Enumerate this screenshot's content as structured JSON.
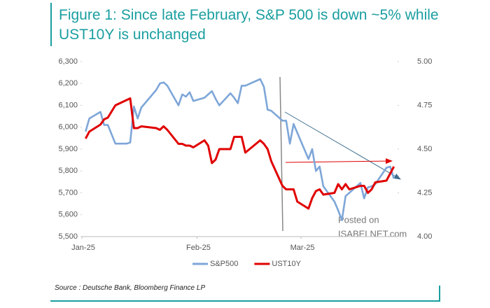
{
  "chart_data": {
    "type": "line",
    "title": "Figure 1: Since late February, S&P 500 is down ~5% while UST10Y is unchanged",
    "source": "Source : Deutsche Bank, Bloomberg Finance LP",
    "watermark": [
      "Posted on",
      "ISABELNET.com"
    ],
    "x": [
      1,
      2,
      5,
      6,
      7,
      9,
      12,
      13,
      14,
      15,
      16,
      20,
      21,
      22,
      23,
      26,
      27,
      28,
      29,
      30,
      33,
      34,
      35,
      36,
      37,
      40,
      41,
      42,
      43,
      44,
      48,
      49,
      50,
      51,
      54,
      55,
      56,
      57,
      58,
      61,
      62,
      63,
      64,
      65,
      68,
      69,
      70,
      71,
      72,
      75,
      76,
      77,
      78,
      79,
      82,
      83,
      84
    ],
    "xlim": [
      0,
      85
    ],
    "xticks": [
      {
        "value": 0,
        "label": "Jan-25"
      },
      {
        "value": 31,
        "label": "Feb-25"
      },
      {
        "value": 59,
        "label": "Mar-25"
      }
    ],
    "series": [
      {
        "name": "S&P500",
        "color": "#7ea6d8",
        "values": [
          5980,
          6040,
          6070,
          6010,
          6010,
          5925,
          5925,
          5930,
          6095,
          6040,
          6090,
          6170,
          6200,
          6205,
          6190,
          6100,
          6150,
          6140,
          6160,
          6120,
          6135,
          6150,
          6165,
          6130,
          6100,
          6155,
          6135,
          6110,
          6190,
          6190,
          6220,
          6185,
          6080,
          6075,
          6030,
          6030,
          5925,
          6015,
          5975,
          5855,
          5900,
          5800,
          5820,
          5730,
          5660,
          5620,
          5575,
          5685,
          5700,
          5745,
          5675,
          5725,
          5730,
          5740,
          5815,
          5820,
          5765
        ]
      },
      {
        "name": "UST10Y",
        "color": "#e00000",
        "axis": "y2",
        "values": [
          4.56,
          4.6,
          4.64,
          4.67,
          4.68,
          4.75,
          4.78,
          4.79,
          4.62,
          4.62,
          4.63,
          4.62,
          4.61,
          4.63,
          4.61,
          4.53,
          4.53,
          4.52,
          4.52,
          4.51,
          4.55,
          4.52,
          4.42,
          4.44,
          4.5,
          4.5,
          4.57,
          4.57,
          4.57,
          4.48,
          4.55,
          4.53,
          4.5,
          4.43,
          4.29,
          4.27,
          4.27,
          4.27,
          4.2,
          4.16,
          4.22,
          4.26,
          4.27,
          4.24,
          4.25,
          4.3,
          4.27,
          4.3,
          4.27,
          4.29,
          4.29,
          4.25,
          4.27,
          4.31,
          4.32,
          4.36,
          4.4
        ]
      }
    ],
    "ylim": [
      5500,
      6300
    ],
    "yticks": [
      {
        "value": 5500,
        "label": "5,500"
      },
      {
        "value": 5600,
        "label": "5,600"
      },
      {
        "value": 5700,
        "label": "5,700"
      },
      {
        "value": 5800,
        "label": "5,800"
      },
      {
        "value": 5900,
        "label": "5,900"
      },
      {
        "value": 6000,
        "label": "6,000"
      },
      {
        "value": 6100,
        "label": "6,100"
      },
      {
        "value": 6200,
        "label": "6,200"
      },
      {
        "value": 6300,
        "label": "6,300"
      }
    ],
    "y2lim": [
      4,
      5
    ],
    "y2ticks": [
      {
        "value": 4,
        "label": "4.00"
      },
      4.25,
      {
        "value": 4.5,
        "label": "4.50"
      },
      4.75,
      {
        "value": 5,
        "label": "5.00"
      }
    ],
    "grid": false,
    "legend": "bottom"
  }
}
